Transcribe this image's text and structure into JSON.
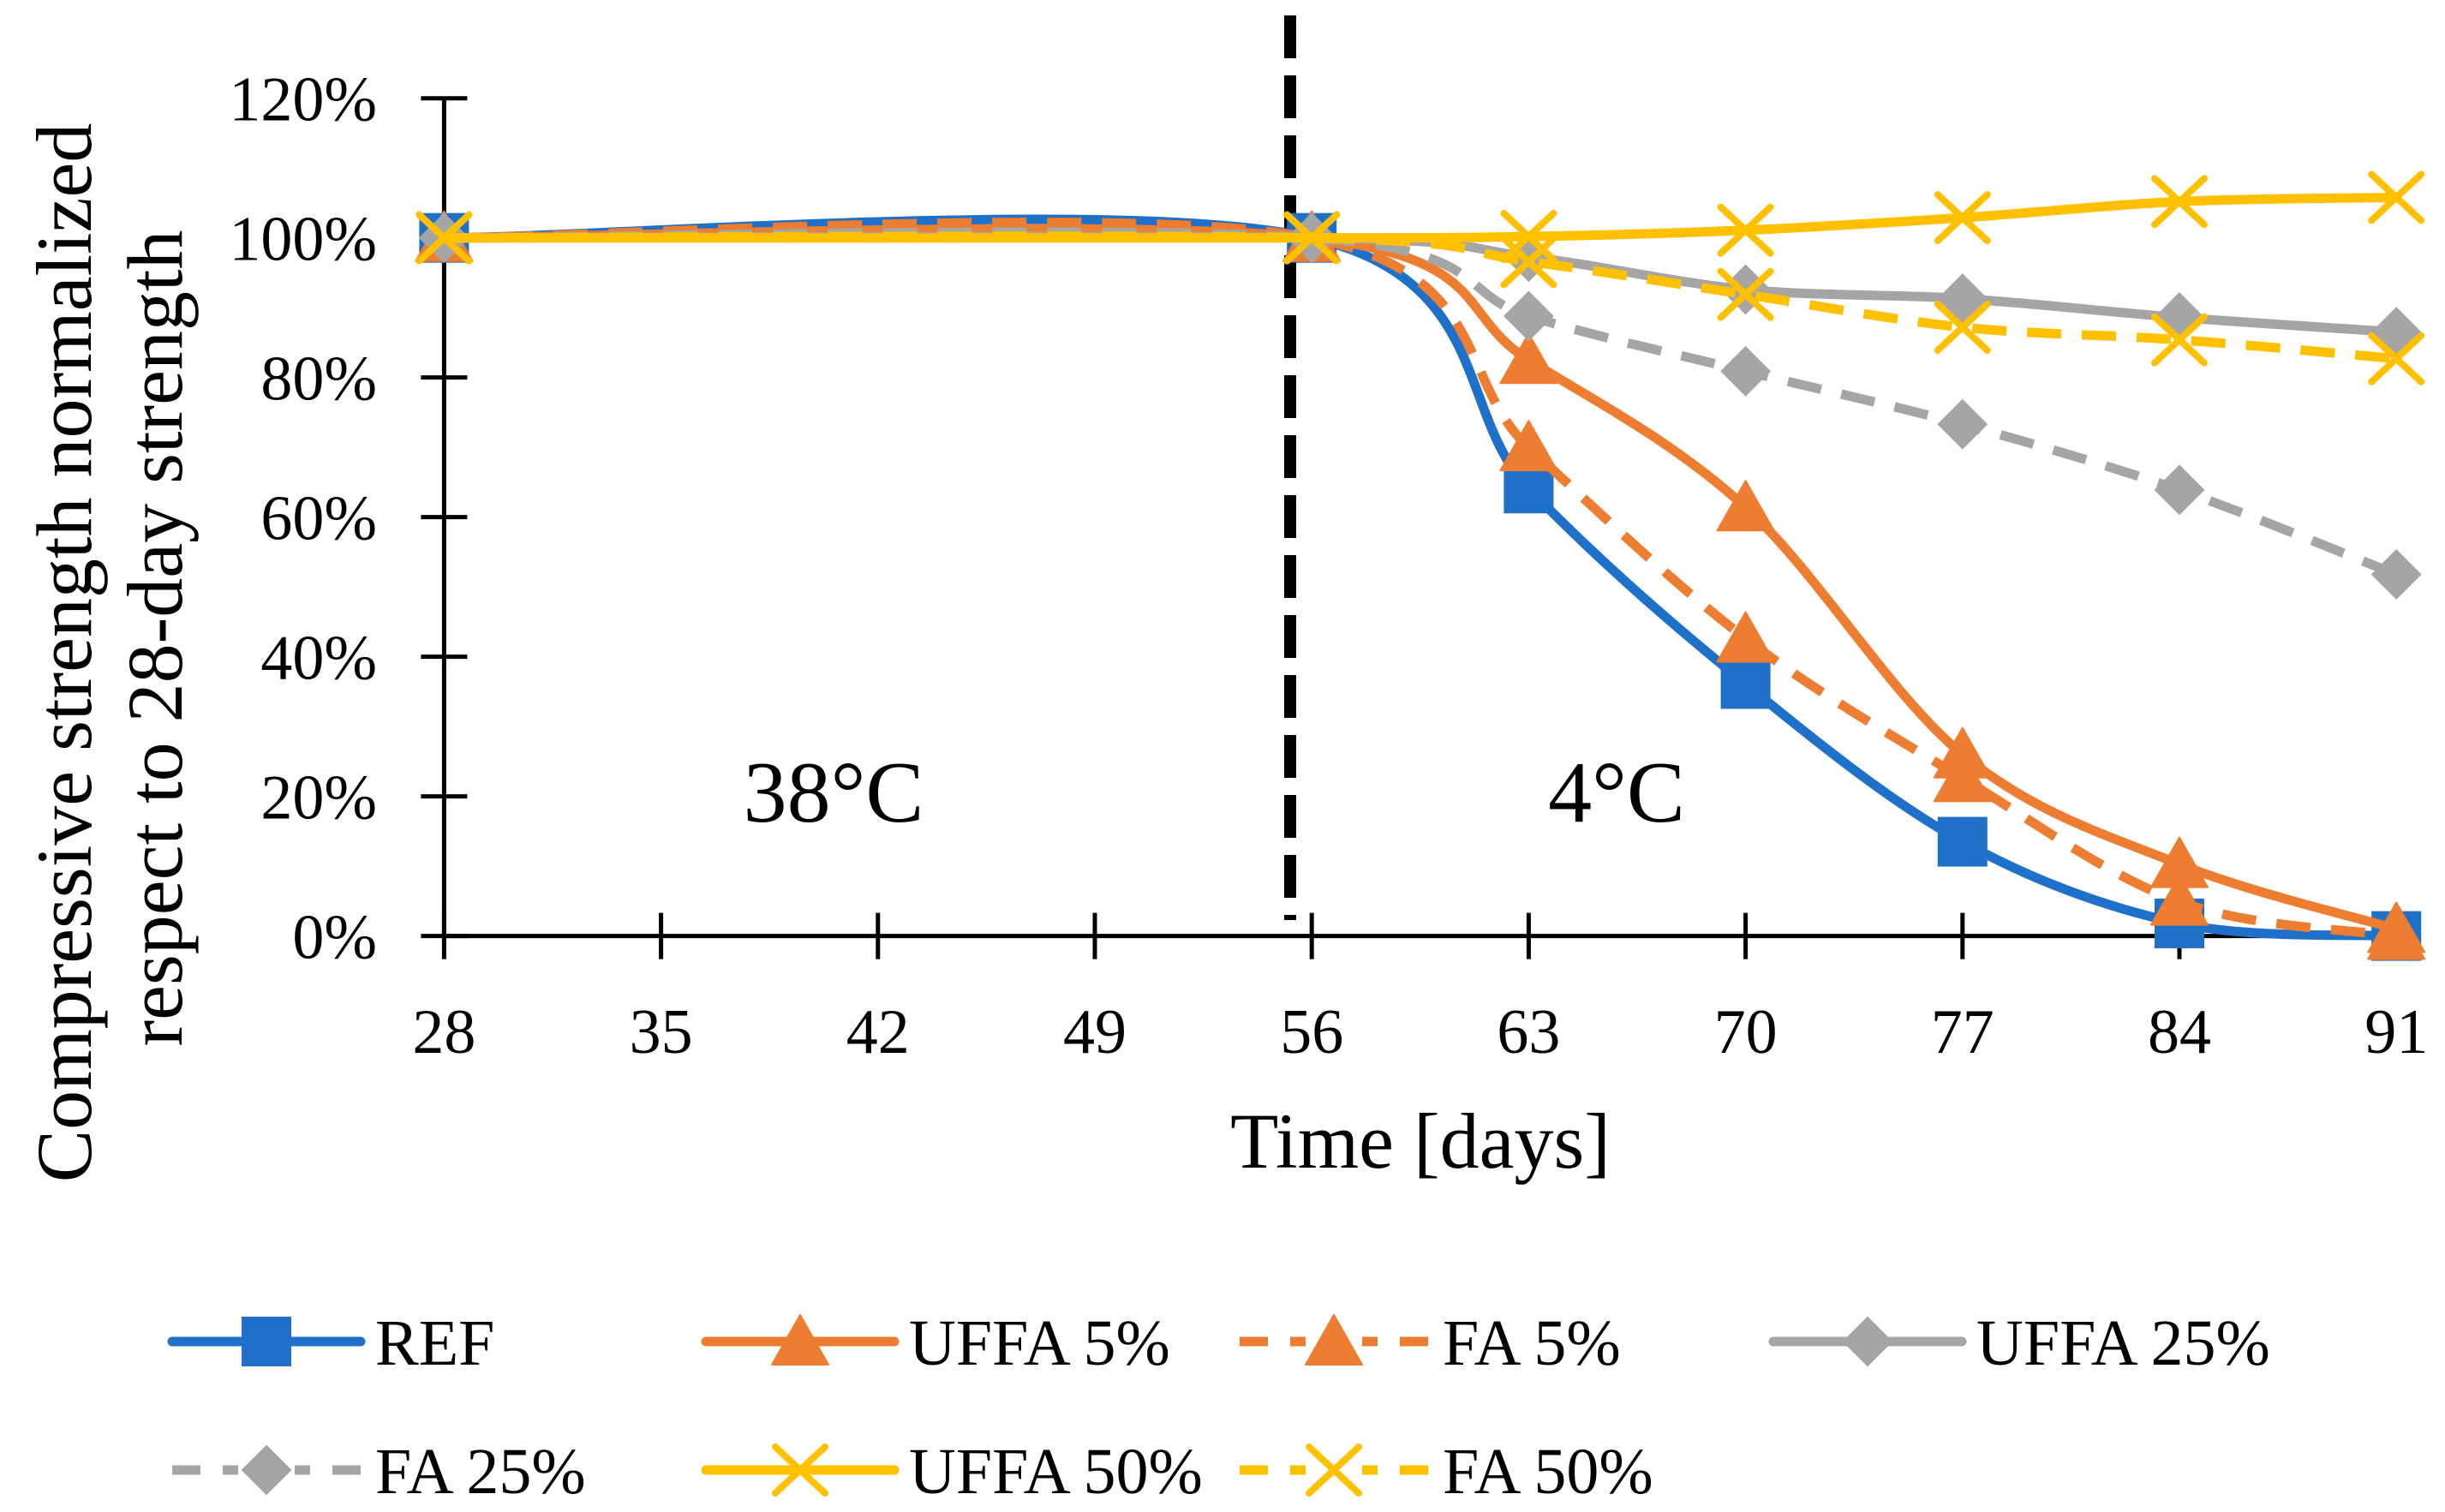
{
  "chart_data": {
    "type": "line",
    "smooth": true,
    "grid": false,
    "legend": "bottom",
    "xlabel": "Time [days]",
    "ylabel": [
      "Compressive strength normalized",
      "respect to 28-day strength"
    ],
    "xlim": [
      28,
      91
    ],
    "ylim": [
      0,
      120
    ],
    "x_ticks": [
      28,
      35,
      42,
      49,
      56,
      63,
      70,
      77,
      84,
      91
    ],
    "x_tick_labels": [
      "28",
      "35",
      "42",
      "49",
      "56",
      "63",
      "70",
      "77",
      "84",
      "91"
    ],
    "y_ticks": [
      0,
      20,
      40,
      60,
      80,
      100,
      120
    ],
    "y_tick_labels": [
      "0%",
      "20%",
      "40%",
      "60%",
      "80%",
      "100%",
      "120%"
    ],
    "annotations": [
      "38°C",
      "4°C"
    ],
    "x": [
      28,
      56,
      63,
      70,
      77,
      84,
      91
    ],
    "series": [
      {
        "name": "REF",
        "color": "#1E70C8",
        "dashed": false,
        "marker": "square",
        "values": [
          100,
          100,
          64.1,
          36.1,
          13.5,
          1.8,
          0
        ]
      },
      {
        "name": "UFFA 5%",
        "color": "#ED7D31",
        "dashed": false,
        "marker": "triangle",
        "values": [
          100,
          100,
          82.5,
          61.4,
          26.0,
          10.3,
          1.0
        ]
      },
      {
        "name": "FA 5%",
        "color": "#ED7D31",
        "dashed": true,
        "marker": "triangle",
        "values": [
          100,
          100,
          70.0,
          42.6,
          22.6,
          4.9,
          0.0
        ]
      },
      {
        "name": "UFFA 25%",
        "color": "#A5A5A5",
        "dashed": false,
        "marker": "diamond",
        "values": [
          100,
          100,
          97.3,
          92.6,
          91.3,
          88.6,
          86.5
        ]
      },
      {
        "name": "FA 25%",
        "color": "#A5A5A5",
        "dashed": true,
        "marker": "diamond",
        "values": [
          100,
          100,
          88.8,
          80.9,
          73.3,
          63.9,
          51.8
        ]
      },
      {
        "name": "UFFA 50%",
        "color": "#FFC000",
        "dashed": false,
        "marker": "x",
        "values": [
          100,
          100,
          100.2,
          101.1,
          102.9,
          105.2,
          105.8
        ]
      },
      {
        "name": "FA 50%",
        "color": "#FFC000",
        "dashed": true,
        "marker": "x",
        "values": [
          100,
          100,
          96.6,
          91.9,
          87.2,
          85.4,
          82.7
        ]
      }
    ]
  }
}
